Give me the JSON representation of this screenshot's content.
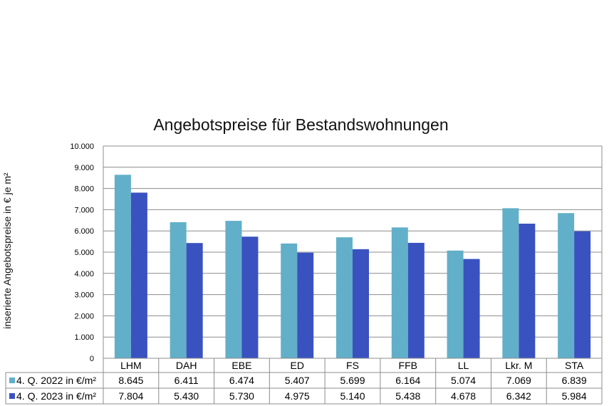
{
  "chart_data": {
    "type": "bar",
    "title": "Angebotspreise für Bestandswohnungen",
    "xlabel": "",
    "ylabel": "inserierte Angebotspreise in € je m²",
    "ylim": [
      0,
      10000
    ],
    "yticks": [
      "0",
      "1.000",
      "2.000",
      "3.000",
      "4.000",
      "5.000",
      "6.000",
      "7.000",
      "8.000",
      "9.000",
      "10.000"
    ],
    "grid": true,
    "legend": "data-table",
    "categories": [
      "LHM",
      "DAH",
      "EBE",
      "ED",
      "FS",
      "FFB",
      "LL",
      "Lkr. M",
      "STA"
    ],
    "series": [
      {
        "name": "4. Q. 2022 in €/m²",
        "color": "#62AFC9",
        "values": [
          8645,
          6411,
          6474,
          5407,
          5699,
          6164,
          5074,
          7069,
          6839
        ],
        "labels": [
          "8.645",
          "6.411",
          "6.474",
          "5.407",
          "5.699",
          "6.164",
          "5.074",
          "7.069",
          "6.839"
        ]
      },
      {
        "name": "4. Q. 2023 in €/m²",
        "color": "#3A52C0",
        "values": [
          7804,
          5430,
          5730,
          4975,
          5140,
          5438,
          4678,
          6342,
          5984
        ],
        "labels": [
          "7.804",
          "5.430",
          "5.730",
          "4.975",
          "5.140",
          "5.438",
          "4.678",
          "6.342",
          "5.984"
        ]
      }
    ]
  }
}
